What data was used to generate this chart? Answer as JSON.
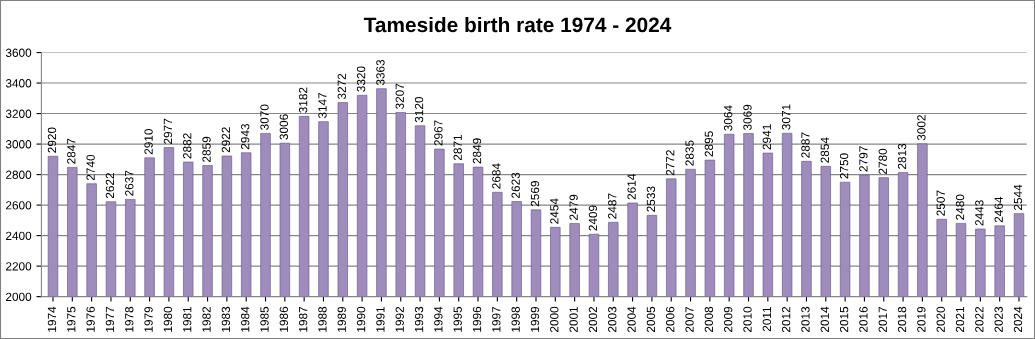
{
  "chart_data": {
    "type": "bar",
    "title": "Tameside birth rate 1974 - 2024",
    "categories": [
      "1974",
      "1975",
      "1976",
      "1977",
      "1978",
      "1979",
      "1980",
      "1981",
      "1982",
      "1983",
      "1984",
      "1985",
      "1986",
      "1987",
      "1988",
      "1989",
      "1990",
      "1991",
      "1992",
      "1993",
      "1994",
      "1995",
      "1996",
      "1997",
      "1998",
      "1999",
      "2000",
      "2001",
      "2002",
      "2003",
      "2004",
      "2005",
      "2006",
      "2007",
      "2008",
      "2009",
      "2010",
      "2011",
      "2012",
      "2013",
      "2014",
      "2015",
      "2016",
      "2017",
      "2018",
      "2019",
      "2020",
      "2021",
      "2022",
      "2023",
      "2024"
    ],
    "values": [
      2920,
      2847,
      2740,
      2622,
      2637,
      2910,
      2977,
      2882,
      2859,
      2922,
      2943,
      3070,
      3006,
      3182,
      3147,
      3272,
      3320,
      3363,
      3207,
      3120,
      2967,
      2871,
      2849,
      2684,
      2623,
      2569,
      2454,
      2479,
      2409,
      2487,
      2614,
      2533,
      2772,
      2835,
      2895,
      3064,
      3069,
      2941,
      3071,
      2887,
      2854,
      2750,
      2797,
      2780,
      2813,
      3002,
      2507,
      2480,
      2443,
      2464,
      2544
    ],
    "value_labels": [
      "2920",
      "2847",
      "2740",
      "2622",
      "2637",
      "2910",
      "2977",
      "2882",
      "2859",
      "2922",
      "2943",
      "3070",
      "3006",
      "3182",
      "3147",
      "3272",
      "3320",
      "3363",
      "3207",
      "3120",
      "2967",
      "2871",
      "2849",
      "2684",
      "2623",
      "2569",
      "2454",
      "2479",
      "2409",
      "2487",
      "2614",
      "2533",
      "2772",
      "2835",
      "2895",
      "3064",
      "3069",
      "2941",
      "3071",
      "2887",
      "2854",
      "2750",
      "2797",
      "2780",
      "2813",
      "3002",
      "2507",
      "2480",
      "2443",
      "2464",
      "2544"
    ],
    "color": "#9d8cbc",
    "ylim": [
      2000,
      3600
    ],
    "yticks": [
      2000,
      2200,
      2400,
      2600,
      2800,
      3000,
      3200,
      3400,
      3600
    ],
    "grid": "y",
    "legend": false
  }
}
